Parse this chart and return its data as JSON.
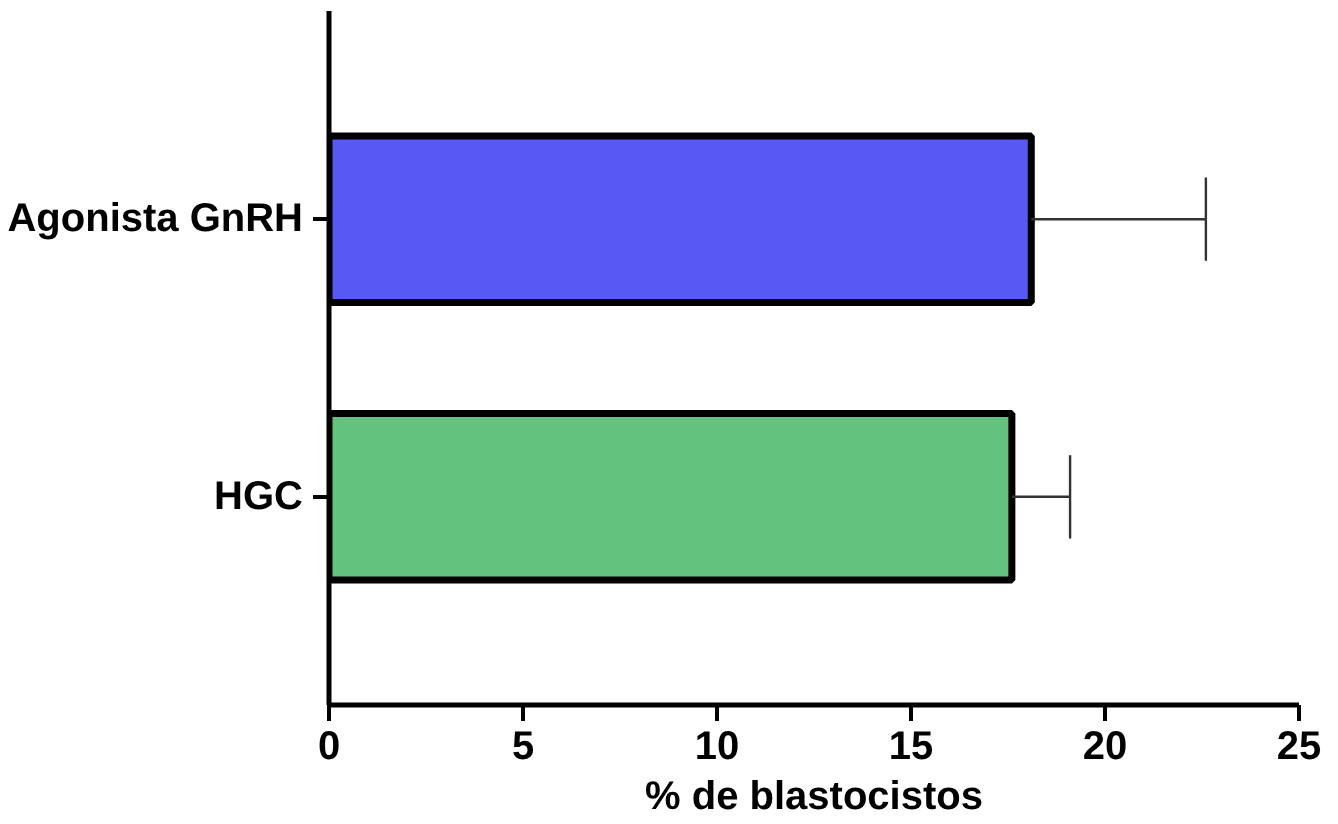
{
  "chart_data": {
    "type": "bar",
    "orientation": "horizontal",
    "xlabel": "% de blastocistos",
    "categories": [
      "Agonista GnRH",
      "HGC"
    ],
    "values": [
      18.1,
      17.6
    ],
    "colors": [
      "#5858f5",
      "#62c27e"
    ],
    "errors": [
      [
        18.1,
        22.6
      ],
      [
        17.6,
        19.1
      ]
    ],
    "xlim": [
      0,
      25
    ],
    "xticks": [
      0,
      5,
      10,
      15,
      20,
      25
    ],
    "grid": false
  }
}
